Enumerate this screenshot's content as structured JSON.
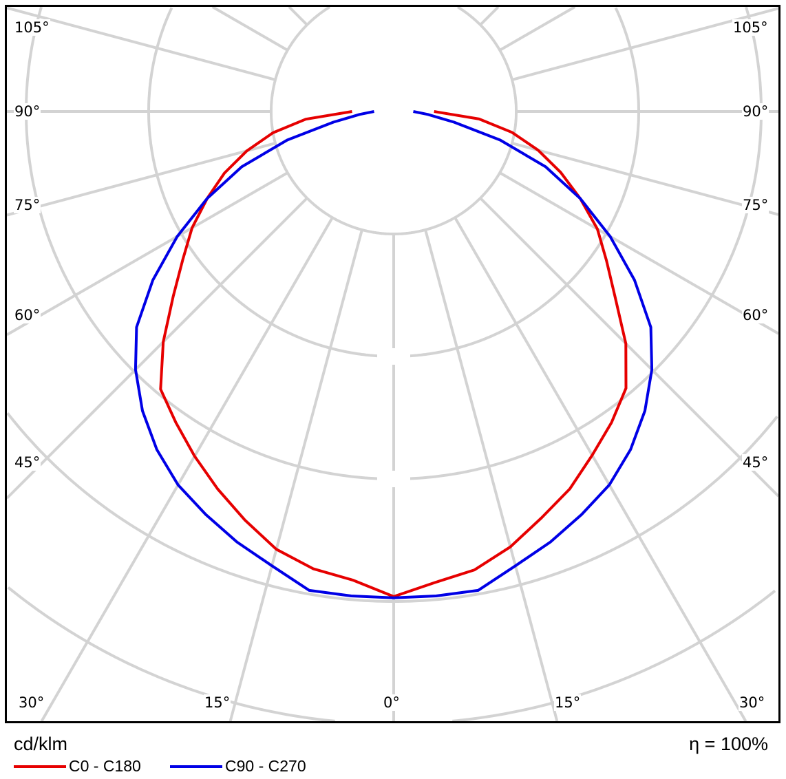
{
  "chart_data": {
    "type": "polar",
    "title": "",
    "unit_label": "cd/klm",
    "efficiency_label": "η = 100%",
    "angle_tick_labels": {
      "left": [
        "105°",
        "90°",
        "75°",
        "60°",
        "45°"
      ],
      "right": [
        "105°",
        "90°",
        "75°",
        "60°",
        "45°"
      ],
      "bottom": [
        "30°",
        "15°",
        "0°",
        "15°",
        "30°"
      ]
    },
    "angle_zero": "down",
    "grid": true,
    "ring_count": 5,
    "radial_scale": "relative (ring spacing = 1), no printed values",
    "legend_position": "bottom-left",
    "gamma_angles": [
      0,
      5,
      10,
      15,
      20,
      25,
      30,
      35,
      40,
      45,
      50,
      55,
      60,
      65,
      70,
      75,
      80,
      85,
      90
    ],
    "series": [
      {
        "name": "C0 - C180",
        "color": "#e60000",
        "right_C0": [
          3.96,
          3.86,
          3.8,
          3.68,
          3.53,
          3.4,
          3.24,
          3.1,
          2.95,
          2.68,
          2.36,
          2.12,
          1.92,
          1.68,
          1.45,
          1.22,
          0.98,
          0.7,
          0.33
        ],
        "left_C180": [
          3.96,
          3.84,
          3.79,
          3.7,
          3.55,
          3.4,
          3.25,
          3.1,
          2.96,
          2.66,
          2.35,
          2.1,
          1.9,
          1.68,
          1.47,
          1.24,
          1.0,
          0.72,
          0.34
        ]
      },
      {
        "name": "C90 - C270",
        "color": "#0000e6",
        "right_C90": [
          3.97,
          3.97,
          3.97,
          3.84,
          3.74,
          3.63,
          3.52,
          3.37,
          3.19,
          2.98,
          2.74,
          2.4,
          2.04,
          1.68,
          1.32,
          0.9,
          0.5,
          0.28,
          0.16
        ],
        "left_C270": [
          3.97,
          3.97,
          3.97,
          3.84,
          3.74,
          3.63,
          3.52,
          3.37,
          3.19,
          2.98,
          2.74,
          2.4,
          2.04,
          1.68,
          1.32,
          0.9,
          0.5,
          0.28,
          0.16
        ]
      }
    ]
  }
}
